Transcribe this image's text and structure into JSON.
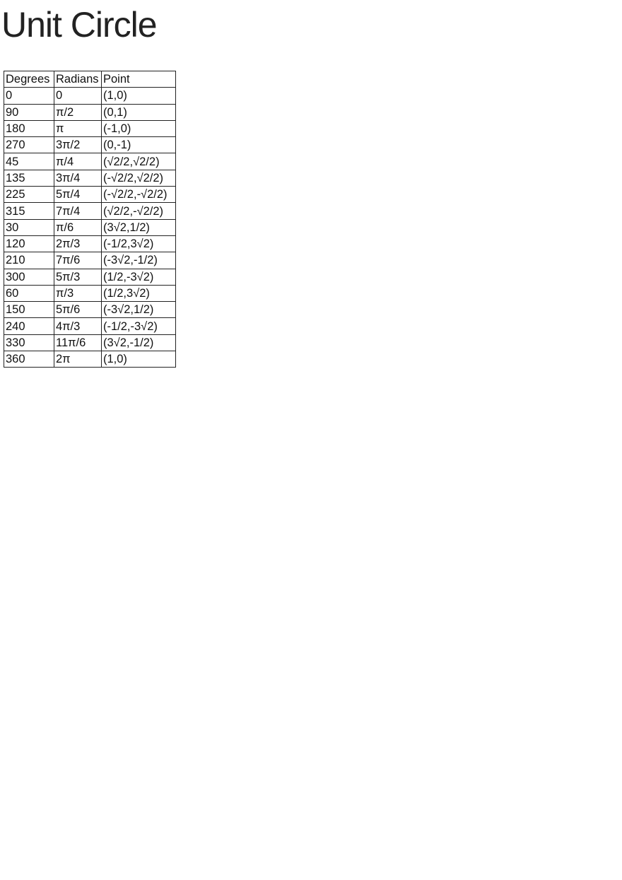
{
  "title": "Unit Circle",
  "table": {
    "headers": [
      "Degrees",
      "Radians",
      "Point"
    ],
    "rows": [
      [
        "0",
        "0",
        "(1,0)"
      ],
      [
        "90",
        "π/2",
        "(0,1)"
      ],
      [
        "180",
        "π",
        "(-1,0)"
      ],
      [
        "270",
        "3π/2",
        "(0,-1)"
      ],
      [
        "45",
        "π/4",
        "(√2/2,√2/2)"
      ],
      [
        "135",
        "3π/4",
        "(-√2/2,√2/2)"
      ],
      [
        "225",
        "5π/4",
        "(-√2/2,-√2/2)"
      ],
      [
        "315",
        "7π/4",
        "(√2/2,-√2/2)"
      ],
      [
        "30",
        "π/6",
        "(3√2,1/2)"
      ],
      [
        "120",
        "2π/3",
        "(-1/2,3√2)"
      ],
      [
        "210",
        "7π/6",
        "(-3√2,-1/2)"
      ],
      [
        "300",
        "5π/3",
        "(1/2,-3√2)"
      ],
      [
        "60",
        "π/3",
        "(1/2,3√2)"
      ],
      [
        "150",
        "5π/6",
        "(-3√2,1/2)"
      ],
      [
        "240",
        "4π/3",
        "(-1/2,-3√2)"
      ],
      [
        "330",
        "11π/6",
        "(3√2,-1/2)"
      ],
      [
        "360",
        "2π",
        "(1,0)"
      ]
    ]
  }
}
